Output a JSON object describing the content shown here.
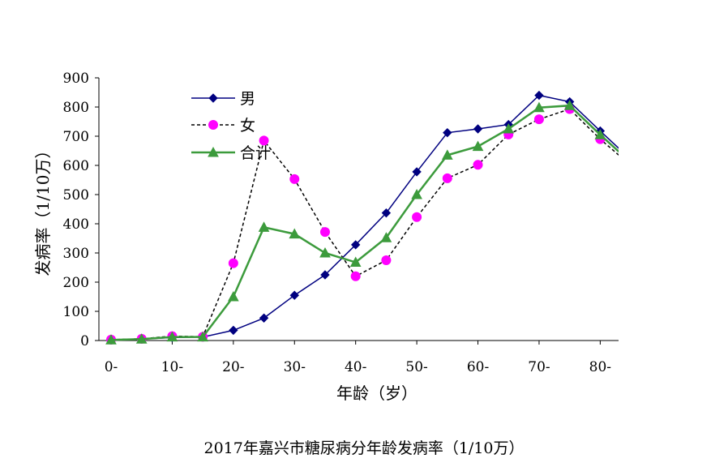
{
  "caption": "2017年嘉兴市糖尿病分年龄发病率（1/10万）",
  "chart_data": {
    "type": "line",
    "xlabel": "年龄（岁）",
    "ylabel": "发病率（1/10万）",
    "ylim": [
      0,
      900
    ],
    "yticks": [
      0,
      100,
      200,
      300,
      400,
      500,
      600,
      700,
      800,
      900
    ],
    "x": [
      0,
      5,
      10,
      15,
      20,
      25,
      30,
      35,
      40,
      45,
      50,
      55,
      60,
      65,
      70,
      75,
      80,
      85
    ],
    "xlim": [
      0,
      83
    ],
    "xticks": [
      0,
      10,
      20,
      30,
      40,
      50,
      60,
      70,
      80
    ],
    "xtick_labels": [
      "0-",
      "10-",
      "20-",
      "30-",
      "40-",
      "50-",
      "60-",
      "70-",
      "80-"
    ],
    "grid": false,
    "legend_position": "top-left",
    "series": [
      {
        "name": "男",
        "color": "#000080",
        "dash": "solid",
        "marker": "diamond",
        "values": [
          2,
          5,
          10,
          12,
          35,
          77,
          155,
          225,
          328,
          437,
          578,
          712,
          725,
          740,
          840,
          818,
          718,
          620
        ]
      },
      {
        "name": "女",
        "color": "#000000",
        "marker_color": "#ff00ff",
        "dash": "dashed",
        "marker": "circle",
        "values": [
          3,
          6,
          15,
          13,
          265,
          685,
          553,
          372,
          220,
          275,
          423,
          556,
          602,
          706,
          758,
          793,
          690,
          600
        ]
      },
      {
        "name": "合计",
        "color": "#3c9b3c",
        "dash": "solid",
        "marker": "triangle",
        "values": [
          2,
          5,
          12,
          12,
          150,
          388,
          365,
          300,
          268,
          352,
          500,
          635,
          665,
          725,
          798,
          805,
          705,
          610
        ]
      }
    ]
  }
}
